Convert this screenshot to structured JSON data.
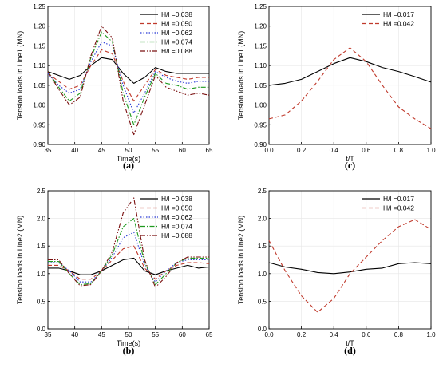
{
  "colors": [
    "#000000",
    "#c0392b",
    "#2a3bd6",
    "#1f9a1f",
    "#7a1010"
  ],
  "chart_data": [
    {
      "type": "line",
      "panel_label": "(a)",
      "xlabel": "Time(s)",
      "ylabel": "Tension loads in Line1 (MN)",
      "xlim": [
        35,
        65
      ],
      "ylim": [
        0.9,
        1.25
      ],
      "xticks": [
        35,
        40,
        45,
        50,
        55,
        60,
        65
      ],
      "yticks": [
        0.9,
        0.95,
        1.0,
        1.05,
        1.1,
        1.15,
        1.2,
        1.25
      ],
      "xtick_labels": [
        "35",
        "40",
        "45",
        "50",
        "55",
        "60",
        "65"
      ],
      "ytick_labels": [
        "0.90",
        "0.95",
        "1.00",
        "1.05",
        "1.10",
        "1.15",
        "1.20",
        "1.25"
      ],
      "legend_position": "top-right",
      "x": [
        35,
        37,
        39,
        41,
        43,
        45,
        47,
        49,
        51,
        53,
        55,
        57,
        59,
        61,
        63,
        65
      ],
      "series": [
        {
          "name": "H/l =0.038",
          "dash": "solid",
          "values": [
            1.085,
            1.075,
            1.065,
            1.075,
            1.1,
            1.12,
            1.115,
            1.08,
            1.055,
            1.07,
            1.095,
            1.085,
            1.08,
            1.08,
            1.08,
            1.08
          ]
        },
        {
          "name": "H/l =0.050",
          "dash": "dashed",
          "values": [
            1.08,
            1.06,
            1.04,
            1.05,
            1.1,
            1.14,
            1.13,
            1.06,
            1.01,
            1.05,
            1.09,
            1.075,
            1.07,
            1.065,
            1.07,
            1.07
          ]
        },
        {
          "name": "H/l =0.062",
          "dash": "dotted",
          "values": [
            1.08,
            1.05,
            1.03,
            1.04,
            1.11,
            1.16,
            1.15,
            1.05,
            0.98,
            1.03,
            1.085,
            1.07,
            1.06,
            1.055,
            1.06,
            1.06
          ]
        },
        {
          "name": "H/l =0.074",
          "dash": "dashdot",
          "values": [
            1.085,
            1.045,
            1.01,
            1.03,
            1.12,
            1.185,
            1.16,
            1.03,
            0.95,
            1.02,
            1.08,
            1.055,
            1.05,
            1.04,
            1.045,
            1.045
          ]
        },
        {
          "name": "H/l =0.088",
          "dash": "dashdotdot",
          "values": [
            1.085,
            1.04,
            1.0,
            1.02,
            1.125,
            1.2,
            1.17,
            1.01,
            0.925,
            1.0,
            1.075,
            1.045,
            1.035,
            1.025,
            1.03,
            1.025
          ]
        }
      ]
    },
    {
      "type": "line",
      "panel_label": "(c)",
      "xlabel": "t/T",
      "ylabel": "Tension loads in Line1 (MN)",
      "xlim": [
        0.0,
        1.0
      ],
      "ylim": [
        0.9,
        1.25
      ],
      "xticks": [
        0.0,
        0.2,
        0.4,
        0.6,
        0.8,
        1.0
      ],
      "yticks": [
        0.9,
        0.95,
        1.0,
        1.05,
        1.1,
        1.15,
        1.2,
        1.25
      ],
      "xtick_labels": [
        "0.0",
        "0.2",
        "0.4",
        "0.6",
        "0.8",
        "1.0"
      ],
      "ytick_labels": [
        "0.90",
        "0.95",
        "1.00",
        "1.05",
        "1.10",
        "1.15",
        "1.20",
        "1.25"
      ],
      "legend_position": "top-right",
      "x": [
        0.0,
        0.1,
        0.2,
        0.3,
        0.4,
        0.5,
        0.6,
        0.7,
        0.8,
        0.9,
        1.0
      ],
      "series": [
        {
          "name": "H/l =0.017",
          "dash": "solid",
          "values": [
            1.05,
            1.055,
            1.065,
            1.085,
            1.105,
            1.12,
            1.11,
            1.095,
            1.085,
            1.072,
            1.058
          ]
        },
        {
          "name": "H/l =0.042",
          "dash": "dashed",
          "values": [
            0.965,
            0.975,
            1.01,
            1.06,
            1.115,
            1.145,
            1.11,
            1.05,
            0.995,
            0.965,
            0.94
          ]
        }
      ]
    },
    {
      "type": "line",
      "panel_label": "(b)",
      "xlabel": "Time(s)",
      "ylabel": "Tension loads in Line2 (MN)",
      "xlim": [
        35,
        65
      ],
      "ylim": [
        0.0,
        2.5
      ],
      "xticks": [
        35,
        40,
        45,
        50,
        55,
        60,
        65
      ],
      "yticks": [
        0.0,
        0.5,
        1.0,
        1.5,
        2.0,
        2.5
      ],
      "xtick_labels": [
        "35",
        "40",
        "45",
        "50",
        "55",
        "60",
        "65"
      ],
      "ytick_labels": [
        "0.0",
        "0.5",
        "1.0",
        "1.5",
        "2.0",
        "2.5"
      ],
      "legend_position": "top-right",
      "x": [
        35,
        37,
        39,
        41,
        43,
        45,
        47,
        49,
        51,
        53,
        55,
        57,
        59,
        61,
        63,
        65
      ],
      "series": [
        {
          "name": "H/l =0.038",
          "dash": "solid",
          "values": [
            1.1,
            1.1,
            1.05,
            0.98,
            0.98,
            1.05,
            1.15,
            1.25,
            1.28,
            1.05,
            0.98,
            1.05,
            1.1,
            1.15,
            1.1,
            1.12
          ]
        },
        {
          "name": "H/l =0.050",
          "dash": "dashed",
          "values": [
            1.15,
            1.15,
            1.05,
            0.9,
            0.9,
            1.05,
            1.25,
            1.45,
            1.5,
            1.1,
            0.9,
            1.05,
            1.15,
            1.2,
            1.2,
            1.18
          ]
        },
        {
          "name": "H/l =0.062",
          "dash": "dotted",
          "values": [
            1.2,
            1.2,
            1.05,
            0.85,
            0.85,
            1.05,
            1.3,
            1.65,
            1.75,
            1.15,
            0.85,
            1.05,
            1.2,
            1.25,
            1.25,
            1.25
          ]
        },
        {
          "name": "H/l =0.074",
          "dash": "dashdot",
          "values": [
            1.22,
            1.22,
            1.0,
            0.8,
            0.82,
            1.05,
            1.35,
            1.85,
            2.0,
            1.2,
            0.8,
            1.0,
            1.2,
            1.28,
            1.28,
            1.28
          ]
        },
        {
          "name": "H/l =0.088",
          "dash": "dashdotdot",
          "values": [
            1.25,
            1.25,
            1.0,
            0.78,
            0.8,
            1.05,
            1.4,
            2.1,
            2.37,
            1.25,
            0.75,
            0.95,
            1.2,
            1.3,
            1.3,
            1.3
          ]
        }
      ]
    },
    {
      "type": "line",
      "panel_label": "(d)",
      "xlabel": "t/T",
      "ylabel": "Tension loads in Line2 (MN)",
      "xlim": [
        0.0,
        1.0
      ],
      "ylim": [
        0.0,
        2.5
      ],
      "xticks": [
        0.0,
        0.2,
        0.4,
        0.6,
        0.8,
        1.0
      ],
      "yticks": [
        0.0,
        0.5,
        1.0,
        1.5,
        2.0,
        2.5
      ],
      "xtick_labels": [
        "0.0",
        "0.2",
        "0.4",
        "0.6",
        "0.8",
        "1.0"
      ],
      "ytick_labels": [
        "0.0",
        "0.5",
        "1.0",
        "1.5",
        "2.0",
        "2.5"
      ],
      "legend_position": "top-right",
      "x": [
        0.0,
        0.1,
        0.2,
        0.3,
        0.4,
        0.5,
        0.6,
        0.7,
        0.8,
        0.9,
        1.0
      ],
      "series": [
        {
          "name": "H/l =0.017",
          "dash": "solid",
          "values": [
            1.2,
            1.12,
            1.08,
            1.02,
            1.0,
            1.03,
            1.08,
            1.1,
            1.18,
            1.2,
            1.18
          ]
        },
        {
          "name": "H/l =0.042",
          "dash": "dashed",
          "values": [
            1.6,
            1.05,
            0.6,
            0.3,
            0.55,
            1.0,
            1.3,
            1.6,
            1.85,
            1.98,
            1.8
          ]
        }
      ]
    }
  ]
}
